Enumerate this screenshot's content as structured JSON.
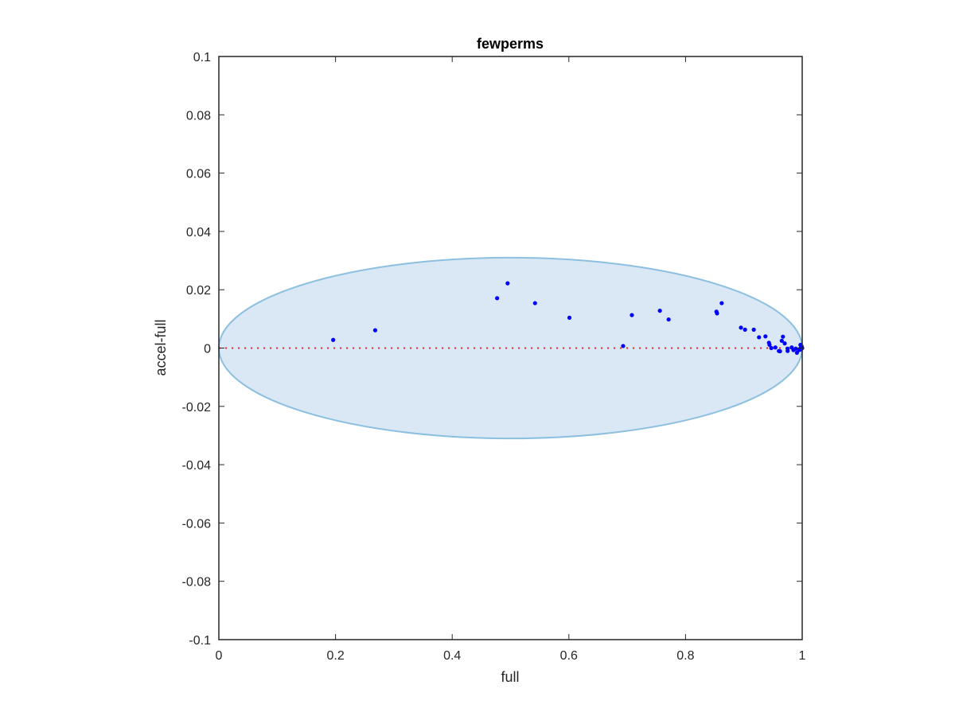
{
  "chart_data": {
    "type": "scatter",
    "title": "fewperms",
    "xlabel": "full",
    "ylabel": "accel-full",
    "xlim": [
      0,
      1
    ],
    "ylim": [
      -0.1,
      0.1
    ],
    "xticks": [
      0,
      0.2,
      0.4,
      0.6,
      0.8,
      1
    ],
    "xtick_labels": [
      "0",
      "0.2",
      "0.4",
      "0.6",
      "0.8",
      "1"
    ],
    "yticks": [
      -0.1,
      -0.08,
      -0.06,
      -0.04,
      -0.02,
      0,
      0.02,
      0.04,
      0.06,
      0.08,
      0.1
    ],
    "ytick_labels": [
      "-0.1",
      "-0.08",
      "-0.06",
      "-0.04",
      "-0.02",
      "0",
      "0.02",
      "0.04",
      "0.06",
      "0.08",
      "0.1"
    ],
    "grid": false,
    "ellipse": {
      "cx": 0.5,
      "cy": 0,
      "rx": 0.5,
      "ry": 0.031,
      "fill": "#d9e8f4",
      "stroke": "#8cbfe0"
    },
    "reference_line": {
      "y": 0,
      "color": "#ff0000",
      "style": "dotted"
    },
    "point_color": "#0000ff",
    "points": [
      [
        0.196,
        0.0028
      ],
      [
        0.268,
        0.0061
      ],
      [
        0.477,
        0.0171
      ],
      [
        0.495,
        0.0222
      ],
      [
        0.542,
        0.0154
      ],
      [
        0.601,
        0.0104
      ],
      [
        0.693,
        0.0007
      ],
      [
        0.708,
        0.0113
      ],
      [
        0.756,
        0.0128
      ],
      [
        0.771,
        0.0098
      ],
      [
        0.862,
        0.0154
      ],
      [
        0.853,
        0.0125
      ],
      [
        0.854,
        0.0119
      ],
      [
        0.895,
        0.007
      ],
      [
        0.902,
        0.0063
      ],
      [
        0.917,
        0.0063
      ],
      [
        0.926,
        0.0037
      ],
      [
        0.937,
        0.004
      ],
      [
        0.943,
        0.0018
      ],
      [
        0.944,
        0.0011
      ],
      [
        0.947,
        0.0
      ],
      [
        0.954,
        0.0002
      ],
      [
        0.96,
        -0.001
      ],
      [
        0.962,
        -0.0011
      ],
      [
        0.967,
        0.0039
      ],
      [
        0.965,
        0.0025
      ],
      [
        0.97,
        0.0016
      ],
      [
        0.975,
        -0.0002
      ],
      [
        0.975,
        -0.001
      ],
      [
        0.982,
        0.0002
      ],
      [
        0.985,
        -0.0007
      ],
      [
        0.989,
        -0.0002
      ],
      [
        0.991,
        -0.0016
      ],
      [
        0.995,
        -0.0007
      ],
      [
        0.997,
        0.0011
      ],
      [
        0.998,
        0.0002
      ],
      [
        1.0,
        0.0
      ],
      [
        0.999,
        0.0006
      ],
      [
        0.998,
        -0.0004
      ]
    ]
  }
}
